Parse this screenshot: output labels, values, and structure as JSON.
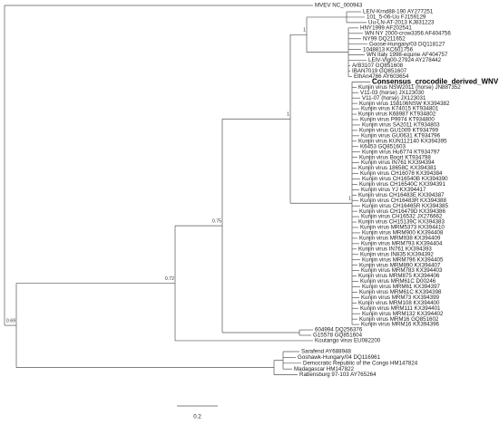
{
  "tips": [
    "MVEV NC_000943",
    "LEIV-Krnd88-190 AY277251",
    "101_5-06-Uu FJ159129",
    "Uu-LN-AT-2013 KJ831223",
    "HNY1999 AF202541",
    "WN NY 2000-crow3356 AF404756",
    "NY99 DQ211652",
    "Goose-Hungary/03 DQ118127",
    "1048813 KC601756",
    "WN Italy 1998-equine AF404757",
    "LEIV-Vlg00-27924 AY278442",
    "ArB3107 GQ851608",
    "IBAN7019 GQ851607",
    "EthAn4766 AY603654",
    "Consensus_crocodile_derived_WNV",
    "Kunjin virus NSW2011 (horse) JN887352",
    "V11-03 (horse) JX123030",
    "V11-07 (horse) JX123031",
    "Kunjin virus 158106NSW KX394382",
    "Kunjin virus K74015 KT934801",
    "Kunjin virus K68987 KT934802",
    "Kunjin virus P9974 KT934800",
    "Kunjin virus SA2011 KT934803",
    "Kunjin virus GU1009 KT934799",
    "Kunjin virus GU0631 KT934796",
    "Kunjin virus KUN112140 KX394395",
    "K6453 GQ851603",
    "Kunjin virus Hu6774 KT934797",
    "Kunjin virus Boort KT934798",
    "Kunjin virus IN761 KX394394",
    "Kunjin virus 18658C KX394381",
    "Kunjin virus CH16078 KX394384",
    "Kunjin virus CH16540B KX394390",
    "Kunjin virus CH16540C KX394391",
    "Kunjin virus YJ KX394417",
    "Kunjin virus CH16483E KX394387",
    "Kunjin virus CH16483R KX394388",
    "Kunjin virus CH16465R KX394385",
    "Kunjin virus CH16479D KX394386",
    "Kunjin virus CH16532 JX276662",
    "Kunjin virus CH15139C KX394383",
    "Kunjin virus MRM5373 KX394410",
    "Kunjin virus MRM900 KX394408",
    "Kunjin virus MRM938 KX394409",
    "Kunjin virus MRM793 KX394404",
    "Kunjin virus IN761 KX394393",
    "Kunjin virus IN835 KX394392",
    "Kunjin virus MRM796 KX394405",
    "Kunjin virus MRM890 KX394407",
    "Kunjin virus MRM783 KX394403",
    "Kunjin virus MRM875 KX394406",
    "Kunjin virus MRM61C D00246",
    "Kunjin virus MRM61 KX394397",
    "Kunjin virus MRM61C KX394398",
    "Kunjin virus MRM73 KX394399",
    "Kunjin virus MRM108 KX394400",
    "Kunjin virus MRM111 KX394401",
    "Kunjin virus MRM132 KX394402",
    "Kunjin virus MRM16 GQ851602",
    "Kunjin virus MRM16 KX394396",
    "604994 DQ256376",
    "G15578 GQ851604",
    "Koutango virus EU082200",
    "Sarafend AY688948",
    "Goshawk-Hungary/04 DQ116961",
    "Democratic Republic of the Congo HM147824",
    "Madagascar HM147822",
    "Rabensburg 97-103 AY765264"
  ],
  "support": [
    "1",
    "1",
    "1",
    "0.75",
    "0.72",
    "0.69"
  ],
  "scale_bar": "0.2"
}
